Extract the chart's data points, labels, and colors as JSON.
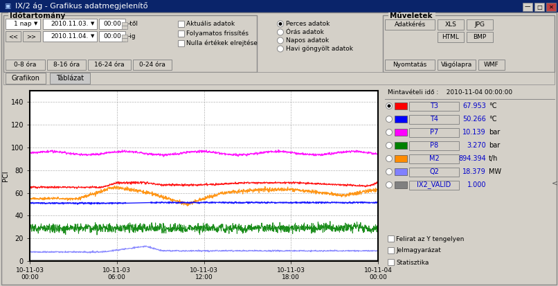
{
  "title": "IX/2 ág - Grafikus adatmegjelenítő",
  "bg_color": "#d4d0c8",
  "plot_bg": "#ffffff",
  "window_title_bg": "#0a246a",
  "toolbar_label": "Időtartomány",
  "muvelet_label": "Műveletek",
  "date1": "2010.11.03.",
  "date2": "2010.11.04.",
  "time1": "00:00",
  "time2": "00:00",
  "period": "1 nap",
  "sample_time": "Mintavételi idő :    2010-11-04 00:00:00",
  "tabs": [
    "Grafikon",
    "Táblázat"
  ],
  "buttons_left": [
    "0-8 óra",
    "8-16 óra",
    "16-24 óra",
    "0-24 óra"
  ],
  "radio_left": [
    "Aktuális adatok",
    "Folyamatos frissítés",
    "Nulla értékek elrejtése"
  ],
  "radio_right": [
    "Perces adatok",
    "Órás adatok",
    "Napos adatok",
    "Havi göngyölt adatok"
  ],
  "checkboxes_bottom": [
    "Felirat az Y tengelyen",
    "Jelmagyarázat",
    "Statisztika"
  ],
  "series": [
    {
      "name": "T3",
      "color": "#ff0000",
      "value": "67.953",
      "unit": "°C"
    },
    {
      "name": "T4",
      "color": "#0000ff",
      "value": "50.266",
      "unit": "°C"
    },
    {
      "name": "P7",
      "color": "#ff00ff",
      "value": "10.139",
      "unit": "bar"
    },
    {
      "name": "P8",
      "color": "#008000",
      "value": "3.270",
      "unit": "bar"
    },
    {
      "name": "M2",
      "color": "#ff8c00",
      "value": "894.394",
      "unit": "t/h"
    },
    {
      "name": "Q2",
      "color": "#8080ff",
      "value": "18.379",
      "unit": "MW"
    },
    {
      "name": "IX2_VALID",
      "color": "#808080",
      "value": "1.000",
      "unit": ""
    }
  ],
  "xticklabels": [
    "10-11-03\n00:00",
    "10-11-03\n06:00",
    "10-11-03\n12:00",
    "10-11-03\n18:00",
    "10-11-04\n00:00"
  ],
  "xtick_positions": [
    0,
    360,
    720,
    1080,
    1440
  ],
  "ylim": [
    0,
    150
  ],
  "yticks": [
    0,
    20,
    40,
    60,
    80,
    100,
    120,
    140
  ],
  "ylabel": "PCI",
  "total_points": 1441,
  "chart_border_color": "#000000",
  "grid_color": "#b0b0b0",
  "grid_style": "--"
}
